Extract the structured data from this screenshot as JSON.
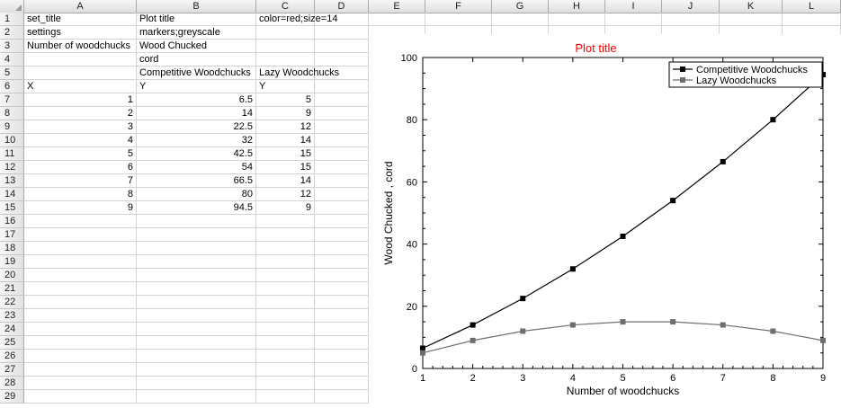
{
  "spreadsheet": {
    "columns": [
      "A",
      "B",
      "C",
      "D",
      "E",
      "F",
      "G",
      "H",
      "I",
      "J",
      "K",
      "L"
    ],
    "rows": [
      "1",
      "2",
      "3",
      "4",
      "5",
      "6",
      "7",
      "8",
      "9",
      "10",
      "11",
      "12",
      "13",
      "14",
      "15",
      "16",
      "17",
      "18",
      "19",
      "20",
      "21",
      "22",
      "23",
      "24",
      "25",
      "26",
      "27",
      "28",
      "29"
    ],
    "cells": {
      "A1": "set_title",
      "B1": "Plot title",
      "C1": "color=red;size=14",
      "A2": "settings",
      "B2": "markers;greyscale",
      "A3": "Number of woodchucks",
      "B3": "Wood Chucked",
      "B4": "cord",
      "B5": "Competitive Woodchucks",
      "C5": "Lazy Woodchucks",
      "A6": "X",
      "B6": "Y",
      "C6": "Y",
      "A7": "1",
      "B7": "6.5",
      "C7": "5",
      "A8": "2",
      "B8": "14",
      "C8": "9",
      "A9": "3",
      "B9": "22.5",
      "C9": "12",
      "A10": "4",
      "B10": "32",
      "C10": "14",
      "A11": "5",
      "B11": "42.5",
      "C11": "15",
      "A12": "6",
      "B12": "54",
      "C12": "15",
      "A13": "7",
      "B13": "66.5",
      "C13": "14",
      "A14": "8",
      "B14": "80",
      "C14": "12",
      "A15": "9",
      "B15": "94.5",
      "C15": "9"
    }
  },
  "chart_data": {
    "type": "line",
    "title": "Plot title",
    "title_color": "#ff0000",
    "xlabel": "Number of woodchucks",
    "ylabel": "Wood Chucked , cord",
    "x": [
      1,
      2,
      3,
      4,
      5,
      6,
      7,
      8,
      9
    ],
    "xlim": [
      1,
      9
    ],
    "ylim": [
      0,
      100
    ],
    "xticks": [
      "1",
      "2",
      "3",
      "4",
      "5",
      "6",
      "7",
      "8",
      "9"
    ],
    "yticks": [
      "0",
      "20",
      "40",
      "60",
      "80",
      "100"
    ],
    "legend_position": "top-right",
    "grid": false,
    "series": [
      {
        "name": "Competitive Woodchucks",
        "values": [
          6.5,
          14,
          22.5,
          32,
          42.5,
          54,
          66.5,
          80,
          94.5
        ],
        "color": "#000000"
      },
      {
        "name": "Lazy Woodchucks",
        "values": [
          5,
          9,
          12,
          14,
          15,
          15,
          14,
          12,
          9
        ],
        "color": "#6e6e6e"
      }
    ]
  }
}
